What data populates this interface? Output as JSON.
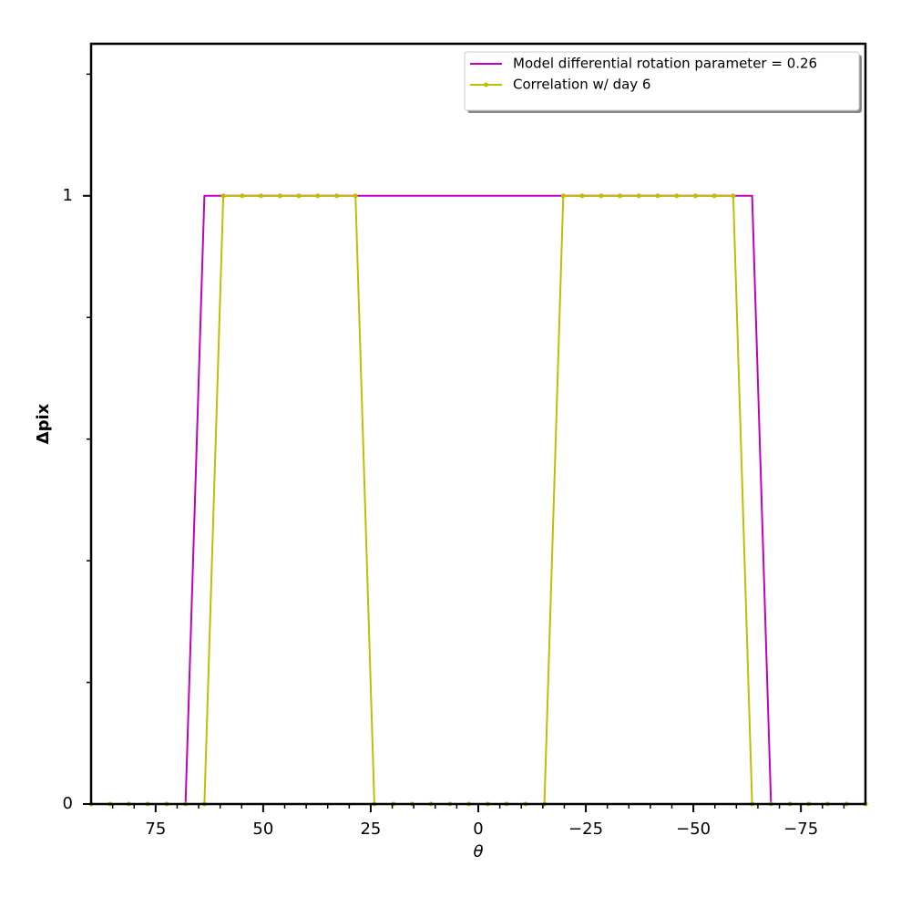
{
  "chart_data": {
    "type": "line",
    "xlabel": "θ",
    "ylabel": "Δpix",
    "x": [
      90,
      85.61,
      81.22,
      76.83,
      72.44,
      68.05,
      63.66,
      59.27,
      54.88,
      50.49,
      46.1,
      41.71,
      37.32,
      32.93,
      28.54,
      24.15,
      19.76,
      15.37,
      10.98,
      6.59,
      2.2,
      -2.2,
      -6.59,
      -10.98,
      -15.37,
      -19.76,
      -24.15,
      -28.54,
      -32.93,
      -37.32,
      -41.71,
      -46.1,
      -50.49,
      -54.88,
      -59.27,
      -63.66,
      -68.05,
      -72.44,
      -76.83,
      -81.22,
      -85.61,
      -90
    ],
    "series": [
      {
        "name": "Model differential rotation parameter = 0.26",
        "color": "#bf00bf",
        "markers": false,
        "values": [
          0,
          0,
          0,
          0,
          0,
          0,
          1,
          1,
          1,
          1,
          1,
          1,
          1,
          1,
          1,
          1,
          1,
          1,
          1,
          1,
          1,
          1,
          1,
          1,
          1,
          1,
          1,
          1,
          1,
          1,
          1,
          1,
          1,
          1,
          1,
          1,
          0,
          0,
          0,
          0,
          0,
          0
        ]
      },
      {
        "name": "Correlation w/ day 6",
        "color": "#bfbf00",
        "markers": true,
        "values": [
          0,
          0,
          0,
          0,
          0,
          0,
          0,
          1,
          1,
          1,
          1,
          1,
          1,
          1,
          1,
          0,
          0,
          0,
          0,
          0,
          0,
          0,
          0,
          0,
          0,
          1,
          1,
          1,
          1,
          1,
          1,
          1,
          1,
          1,
          1,
          0,
          0,
          0,
          0,
          0,
          0,
          0
        ]
      }
    ],
    "xlim": [
      90,
      -90
    ],
    "xticks": [
      {
        "value": 75,
        "label": "75"
      },
      50,
      25,
      0,
      {
        "value": -25,
        "label": "−25"
      },
      {
        "value": -50,
        "label": "−50"
      },
      {
        "value": -75,
        "label": "−75"
      }
    ],
    "x_minor_ticks": [
      85,
      80,
      70,
      65,
      60,
      55,
      45,
      40,
      35,
      30,
      20,
      15,
      10,
      5,
      -5,
      -10,
      -15,
      -20,
      -30,
      -35,
      -40,
      -45,
      -55,
      -60,
      -65,
      -70,
      -80,
      -85
    ],
    "ylim": [
      0,
      1.25
    ],
    "yticks": [
      0,
      1
    ],
    "y_minor_ticks": [
      0.2,
      0.4,
      0.6,
      0.8,
      1.2
    ],
    "legend": "upper right",
    "grid": false
  }
}
